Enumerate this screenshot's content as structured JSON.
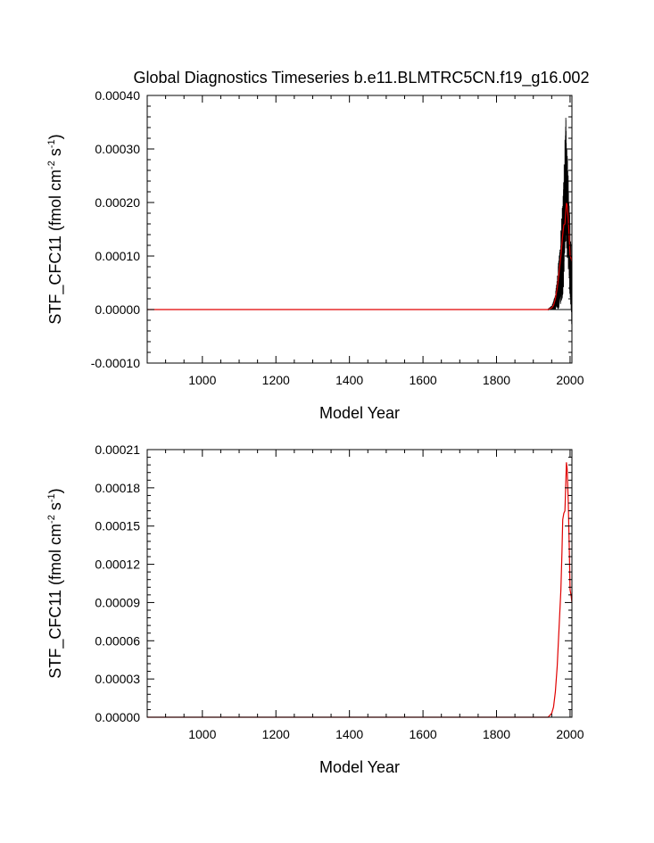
{
  "colors": {
    "ensemble": "#000000",
    "mean": "#e00000",
    "zero_line": "#000000"
  },
  "chart_data": [
    {
      "type": "line",
      "title": "Global Diagnostics Timeseries b.e11.BLMTRC5CN.f19_g16.002",
      "xlabel": "Model Year",
      "ylabel_main": "STF_CFC11 (fmol cm",
      "ylabel_exp1": "-2",
      "ylabel_mid": " s",
      "ylabel_exp2": "-1",
      "ylabel_end": ")",
      "xlim": [
        850,
        2005
      ],
      "ylim": [
        -0.0001,
        0.0004
      ],
      "xticks": [
        1000,
        1200,
        1400,
        1600,
        1800,
        2000
      ],
      "xtick_labels": [
        "1000",
        "1200",
        "1400",
        "1600",
        "1800",
        "2000"
      ],
      "yticks": [
        -0.0001,
        0.0,
        0.0001,
        0.0002,
        0.0003,
        0.0004
      ],
      "ytick_labels": [
        "-0.00010",
        "0.00000",
        "0.00010",
        "0.00020",
        "0.00030",
        "0.00040"
      ],
      "series": [
        {
          "style": "monthly-black",
          "x": [
            850,
            1940,
            1950,
            1955,
            1960,
            1965,
            1970,
            1975,
            1980,
            1983,
            1985,
            1988,
            1990,
            1993,
            1995,
            1998,
            2000,
            2003,
            2005
          ],
          "y": [
            0.0,
            0.0,
            5e-06,
            1e-05,
            2e-05,
            4e-05,
            7e-05,
            0.00011,
            0.00015,
            0.0002,
            0.00026,
            0.00033,
            0.00031,
            0.00025,
            0.00022,
            0.00016,
            0.00012,
            7e-05,
            0.0
          ],
          "amp": [
            0,
            0,
            4e-06,
            8e-06,
            1.5e-05,
            3e-05,
            5e-05,
            7e-05,
            9e-05,
            0.0001,
            0.00011,
            0.00012,
            0.00011,
            0.0001,
            9e-05,
            8e-05,
            7e-05,
            6e-05,
            4e-05
          ]
        },
        {
          "style": "annual-red",
          "x": [
            850,
            1940,
            1950,
            1955,
            1960,
            1965,
            1970,
            1975,
            1980,
            1983,
            1986,
            1988,
            1990,
            1992,
            1995,
            1998,
            2000,
            2003,
            2005
          ],
          "y": [
            0.0,
            0.0,
            3e-06,
            8e-06,
            2e-05,
            4e-05,
            7e-05,
            0.0001,
            0.00014,
            0.000158,
            0.00016,
            0.00018,
            0.0002,
            0.000195,
            0.00017,
            0.00013,
            0.0001,
            9.5e-05,
            9e-05
          ]
        }
      ],
      "zero_line": true
    },
    {
      "type": "line",
      "title": "",
      "xlabel": "Model Year",
      "ylabel_main": "STF_CFC11 (fmol cm",
      "ylabel_exp1": "-2",
      "ylabel_mid": " s",
      "ylabel_exp2": "-1",
      "ylabel_end": ")",
      "xlim": [
        850,
        2005
      ],
      "ylim": [
        0.0,
        0.00021
      ],
      "xticks": [
        1000,
        1200,
        1400,
        1600,
        1800,
        2000
      ],
      "xtick_labels": [
        "1000",
        "1200",
        "1400",
        "1600",
        "1800",
        "2000"
      ],
      "yticks": [
        0.0,
        3e-05,
        6e-05,
        9e-05,
        0.00012,
        0.00015,
        0.00018,
        0.00021
      ],
      "ytick_labels": [
        "0.00000",
        "0.00003",
        "0.00006",
        "0.00009",
        "0.00012",
        "0.00015",
        "0.00018",
        "0.00021"
      ],
      "series": [
        {
          "style": "annual-red",
          "x": [
            850,
            1940,
            1950,
            1955,
            1960,
            1965,
            1970,
            1975,
            1978,
            1980,
            1983,
            1986,
            1988,
            1990,
            1992,
            1995,
            1998,
            2000,
            2003,
            2005
          ],
          "y": [
            0.0,
            0.0,
            3e-06,
            8e-06,
            2e-05,
            4e-05,
            7e-05,
            0.0001,
            0.00013,
            0.000155,
            0.00016,
            0.000162,
            0.00018,
            0.0002,
            0.000195,
            0.00017,
            0.00013,
            0.0001,
            9.5e-05,
            9e-05
          ]
        }
      ],
      "zero_line": false
    }
  ]
}
